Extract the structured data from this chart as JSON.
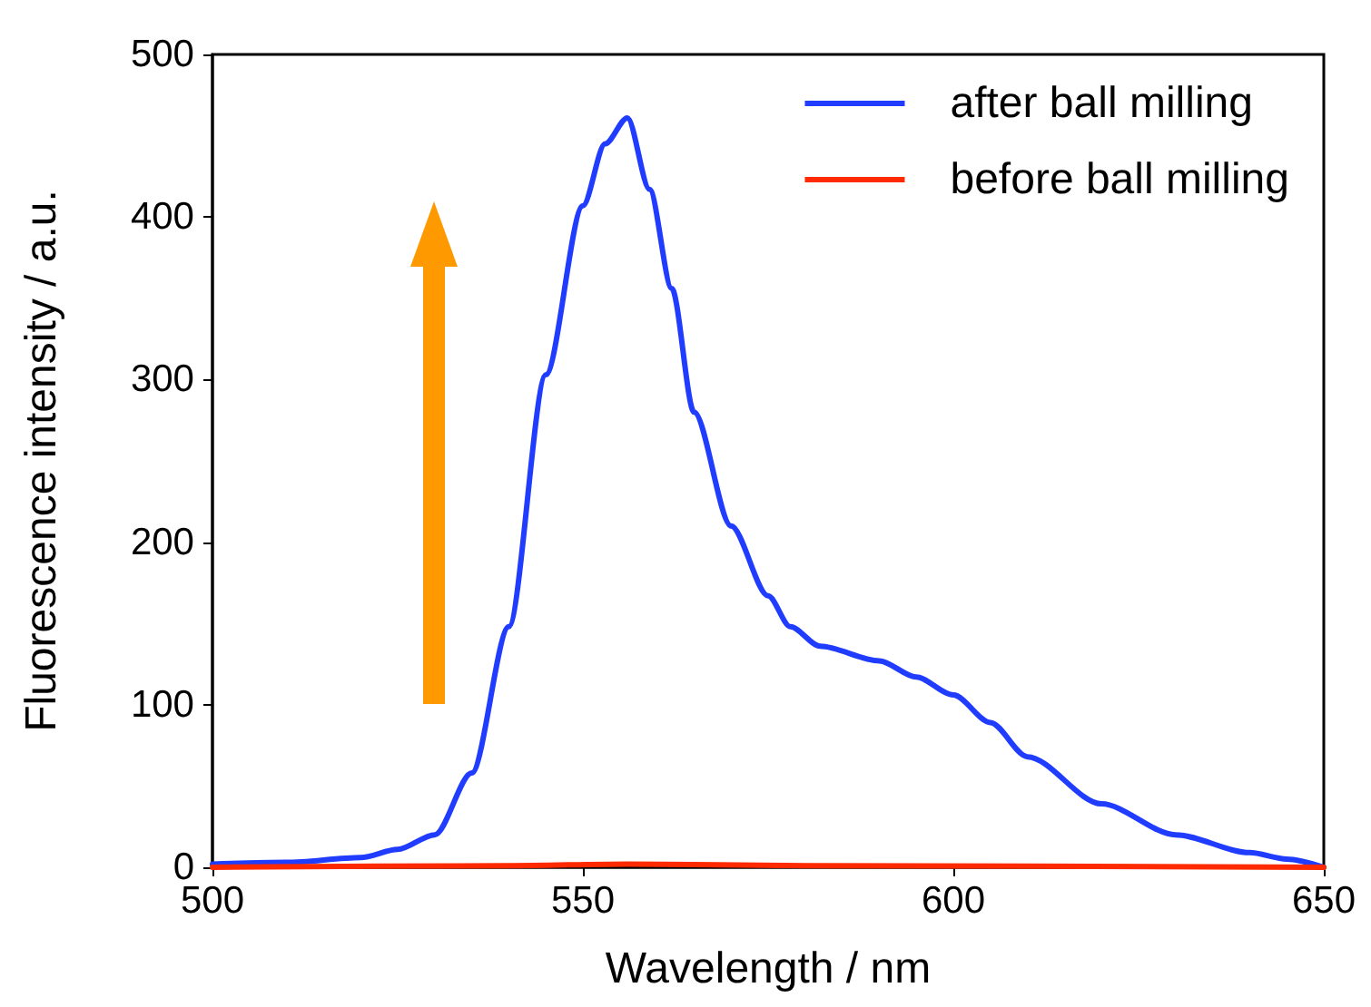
{
  "chart_data": {
    "type": "line",
    "xlabel": "Wavelength / nm",
    "ylabel": "Fluorescence intensity / a.u.",
    "xlim": [
      500,
      650
    ],
    "xticks": [
      500,
      550,
      600,
      650
    ],
    "ylim": [
      0,
      500
    ],
    "yticks": [
      0,
      100,
      200,
      300,
      400,
      500
    ],
    "legend": "top right",
    "grid": false,
    "marker": "none",
    "line_style": "solid",
    "series": [
      {
        "name": "after ball milling",
        "color": "#1f3cff",
        "x": [
          500,
          510,
          520,
          525,
          530,
          535,
          540,
          545,
          550,
          553,
          556,
          559,
          562,
          565,
          570,
          575,
          578,
          582,
          590,
          595,
          600,
          605,
          610,
          620,
          630,
          640,
          645,
          650
        ],
        "values": [
          2,
          3,
          6,
          11,
          20,
          58,
          148,
          303,
          407,
          445,
          461,
          417,
          356,
          280,
          210,
          167,
          148,
          136,
          127,
          117,
          106,
          89,
          68,
          39,
          20,
          9,
          5,
          0
        ]
      },
      {
        "name": "before ball milling",
        "color": "#ff2a00",
        "x": [
          500,
          540,
          556,
          580,
          650
        ],
        "values": [
          0,
          1,
          2,
          1,
          0
        ]
      }
    ]
  }
}
